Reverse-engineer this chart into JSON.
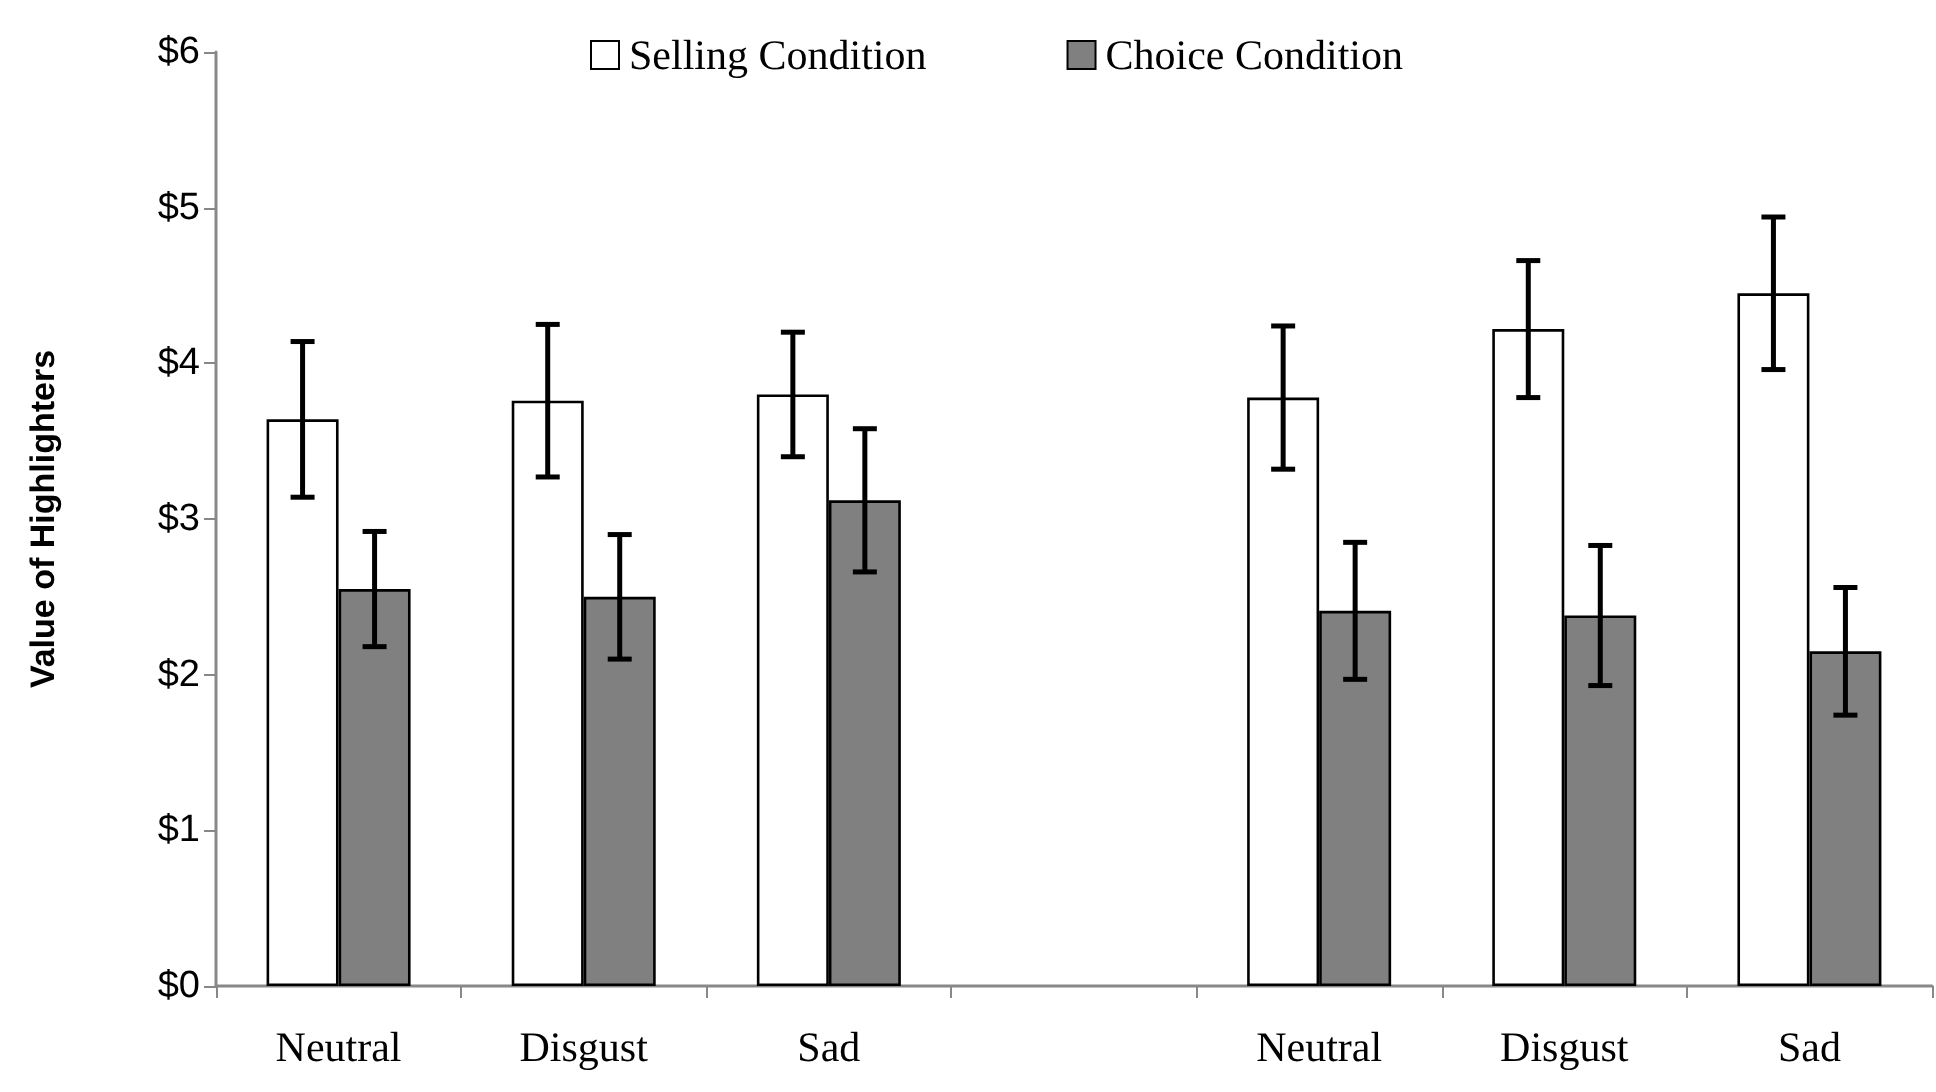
{
  "chart_data": {
    "type": "bar",
    "ylabel": "Value of Highlighters",
    "categories": [
      "Neutral",
      "Disgust",
      "Sad",
      null,
      "Neutral",
      "Disgust",
      "Sad"
    ],
    "series": [
      {
        "name": "Selling Condition",
        "color": "#ffffff",
        "values": [
          3.64,
          3.76,
          3.8,
          null,
          3.78,
          4.22,
          4.45
        ],
        "errors": [
          0.5,
          0.49,
          0.4,
          null,
          0.46,
          0.44,
          0.49
        ]
      },
      {
        "name": "Choice Condition",
        "color": "#808080",
        "values": [
          2.55,
          2.5,
          3.12,
          null,
          2.41,
          2.38,
          2.15
        ],
        "errors": [
          0.37,
          0.4,
          0.46,
          null,
          0.44,
          0.45,
          0.41
        ]
      }
    ],
    "ylim": [
      0,
      6
    ],
    "yticks": [
      {
        "value": 0,
        "label": "$0"
      },
      {
        "value": 1,
        "label": "$1"
      },
      {
        "value": 2,
        "label": "$2"
      },
      {
        "value": 3,
        "label": "$3"
      },
      {
        "value": 4,
        "label": "$4"
      },
      {
        "value": 5,
        "label": "$5"
      },
      {
        "value": 6,
        "label": "$6"
      }
    ],
    "grid": false,
    "legend": "top"
  }
}
